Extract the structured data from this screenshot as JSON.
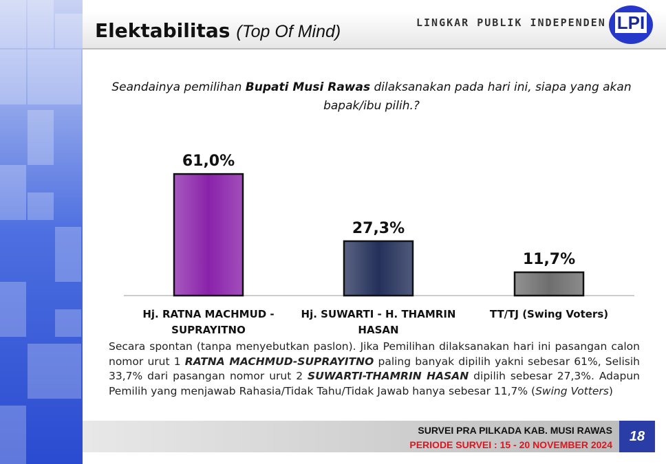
{
  "header": {
    "title": "Elektabilitas",
    "subtitle": "(Top Of Mind)",
    "organization": "LINGKAR PUBLIK INDEPENDEN",
    "logo": "LPI"
  },
  "question": [
    "Seandainya pemilihan ",
    "Bupati  Musi Rawas",
    " dilaksanakan pada hari ini, siapa yang akan bapak/ibu pilih.?"
  ],
  "chart_data": {
    "type": "bar",
    "categories": [
      "Hj. RATNA MACHMUD - SUPRAYITNO",
      "Hj. SUWARTI - H. THAMRIN HASAN",
      "TT/TJ (Swing Voters)"
    ],
    "values": [
      61.0,
      27.3,
      11.7
    ],
    "value_labels": [
      "61,0%",
      "27,3%",
      "11,7%"
    ],
    "colors": [
      "#8a22aa",
      "#24305a",
      "#6e6e6e"
    ]
  },
  "paragraph": [
    "Secara spontan (tanpa menyebutkan paslon). Jika Pemilihan dilaksanakan hari ini pasangan calon nomor urut 1 ",
    "RATNA MACHMUD-SUPRAYITNO",
    " paling banyak dipilih  yakni sebesar 61%, Selisih 33,7% dari pasangan nomor urut 2 ",
    "SUWARTI-THAMRIN HASAN",
    " dipilih sebesar 27,3%. Adapun Pemilih yang menjawab Rahasia/Tidak Tahu/Tidak Jawab hanya sebesar  11,7% (",
    "Swing Votters",
    ")"
  ],
  "footer": {
    "line1": "SURVEI PRA PILKADA KAB. MUSI RAWAS",
    "line2": "PERIODE SURVEI : 15 - 20 NOVEMBER 2024",
    "page": "18"
  }
}
